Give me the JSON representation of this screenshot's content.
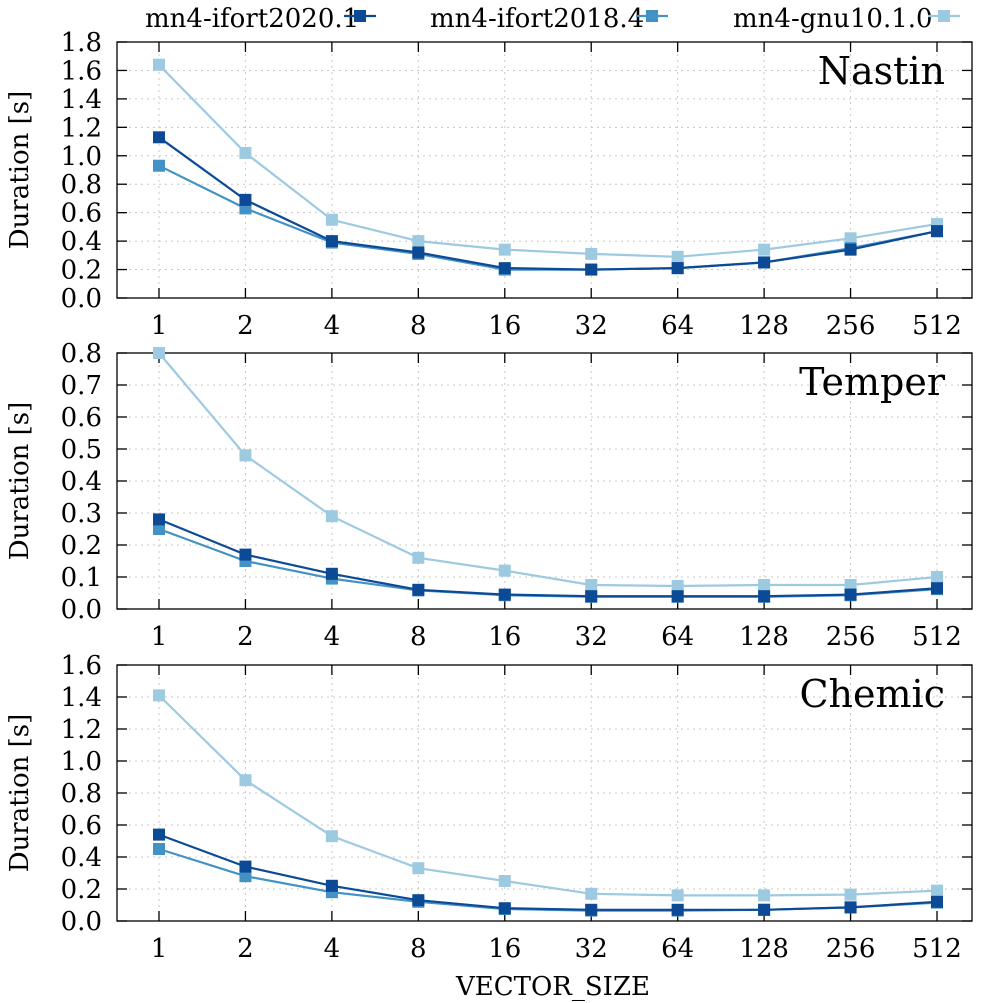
{
  "chart_data": {
    "type": "line",
    "xlabel": "VECTOR_SIZE",
    "categories": [
      "1",
      "2",
      "4",
      "8",
      "16",
      "32",
      "64",
      "128",
      "256",
      "512"
    ],
    "legend": {
      "placement": "top",
      "entries": [
        "mn4-ifort2020.1",
        "mn4-ifort2018.4",
        "mn4-gnu10.1.0"
      ]
    },
    "colors": {
      "mn4-ifort2020.1": "#0d4a96",
      "mn4-ifort2018.4": "#4392c6",
      "mn4-gnu10.1.0": "#9ecae1"
    },
    "panels": [
      {
        "title": "Nastin",
        "ylabel": "Duration [s]",
        "ylim": [
          0,
          1.8
        ],
        "yticks": [
          "0.0",
          "0.2",
          "0.4",
          "0.6",
          "0.8",
          "1.0",
          "1.2",
          "1.4",
          "1.6",
          "1.8"
        ],
        "series": [
          {
            "name": "mn4-ifort2020.1",
            "values": [
              1.13,
              0.69,
              0.4,
              0.32,
              0.21,
              0.2,
              0.21,
              0.25,
              0.34,
              0.47
            ]
          },
          {
            "name": "mn4-ifort2018.4",
            "values": [
              0.93,
              0.63,
              0.39,
              0.31,
              0.2,
              0.2,
              0.21,
              0.25,
              0.35,
              0.47
            ]
          },
          {
            "name": "mn4-gnu10.1.0",
            "values": [
              1.64,
              1.02,
              0.55,
              0.4,
              0.34,
              0.31,
              0.29,
              0.34,
              0.42,
              0.52
            ]
          }
        ]
      },
      {
        "title": "Temper",
        "ylabel": "Duration [s]",
        "ylim": [
          0,
          0.8
        ],
        "yticks": [
          "0.0",
          "0.1",
          "0.2",
          "0.3",
          "0.4",
          "0.5",
          "0.6",
          "0.7",
          "0.8"
        ],
        "series": [
          {
            "name": "mn4-ifort2020.1",
            "values": [
              0.28,
              0.17,
              0.11,
              0.06,
              0.045,
              0.04,
              0.04,
              0.04,
              0.045,
              0.065
            ]
          },
          {
            "name": "mn4-ifort2018.4",
            "values": [
              0.25,
              0.15,
              0.095,
              0.058,
              0.043,
              0.038,
              0.038,
              0.038,
              0.043,
              0.062
            ]
          },
          {
            "name": "mn4-gnu10.1.0",
            "values": [
              0.8,
              0.48,
              0.29,
              0.16,
              0.12,
              0.075,
              0.072,
              0.075,
              0.075,
              0.1
            ]
          }
        ]
      },
      {
        "title": "Chemic",
        "ylabel": "Duration [s]",
        "ylim": [
          0,
          1.6
        ],
        "yticks": [
          "0.0",
          "0.2",
          "0.4",
          "0.6",
          "0.8",
          "1.0",
          "1.2",
          "1.4",
          "1.6"
        ],
        "series": [
          {
            "name": "mn4-ifort2020.1",
            "values": [
              0.54,
              0.34,
              0.22,
              0.13,
              0.08,
              0.07,
              0.07,
              0.07,
              0.085,
              0.12
            ]
          },
          {
            "name": "mn4-ifort2018.4",
            "values": [
              0.45,
              0.28,
              0.18,
              0.12,
              0.075,
              0.065,
              0.065,
              0.07,
              0.085,
              0.115
            ]
          },
          {
            "name": "mn4-gnu10.1.0",
            "values": [
              1.41,
              0.88,
              0.53,
              0.33,
              0.25,
              0.17,
              0.16,
              0.16,
              0.165,
              0.19
            ]
          }
        ]
      }
    ]
  }
}
